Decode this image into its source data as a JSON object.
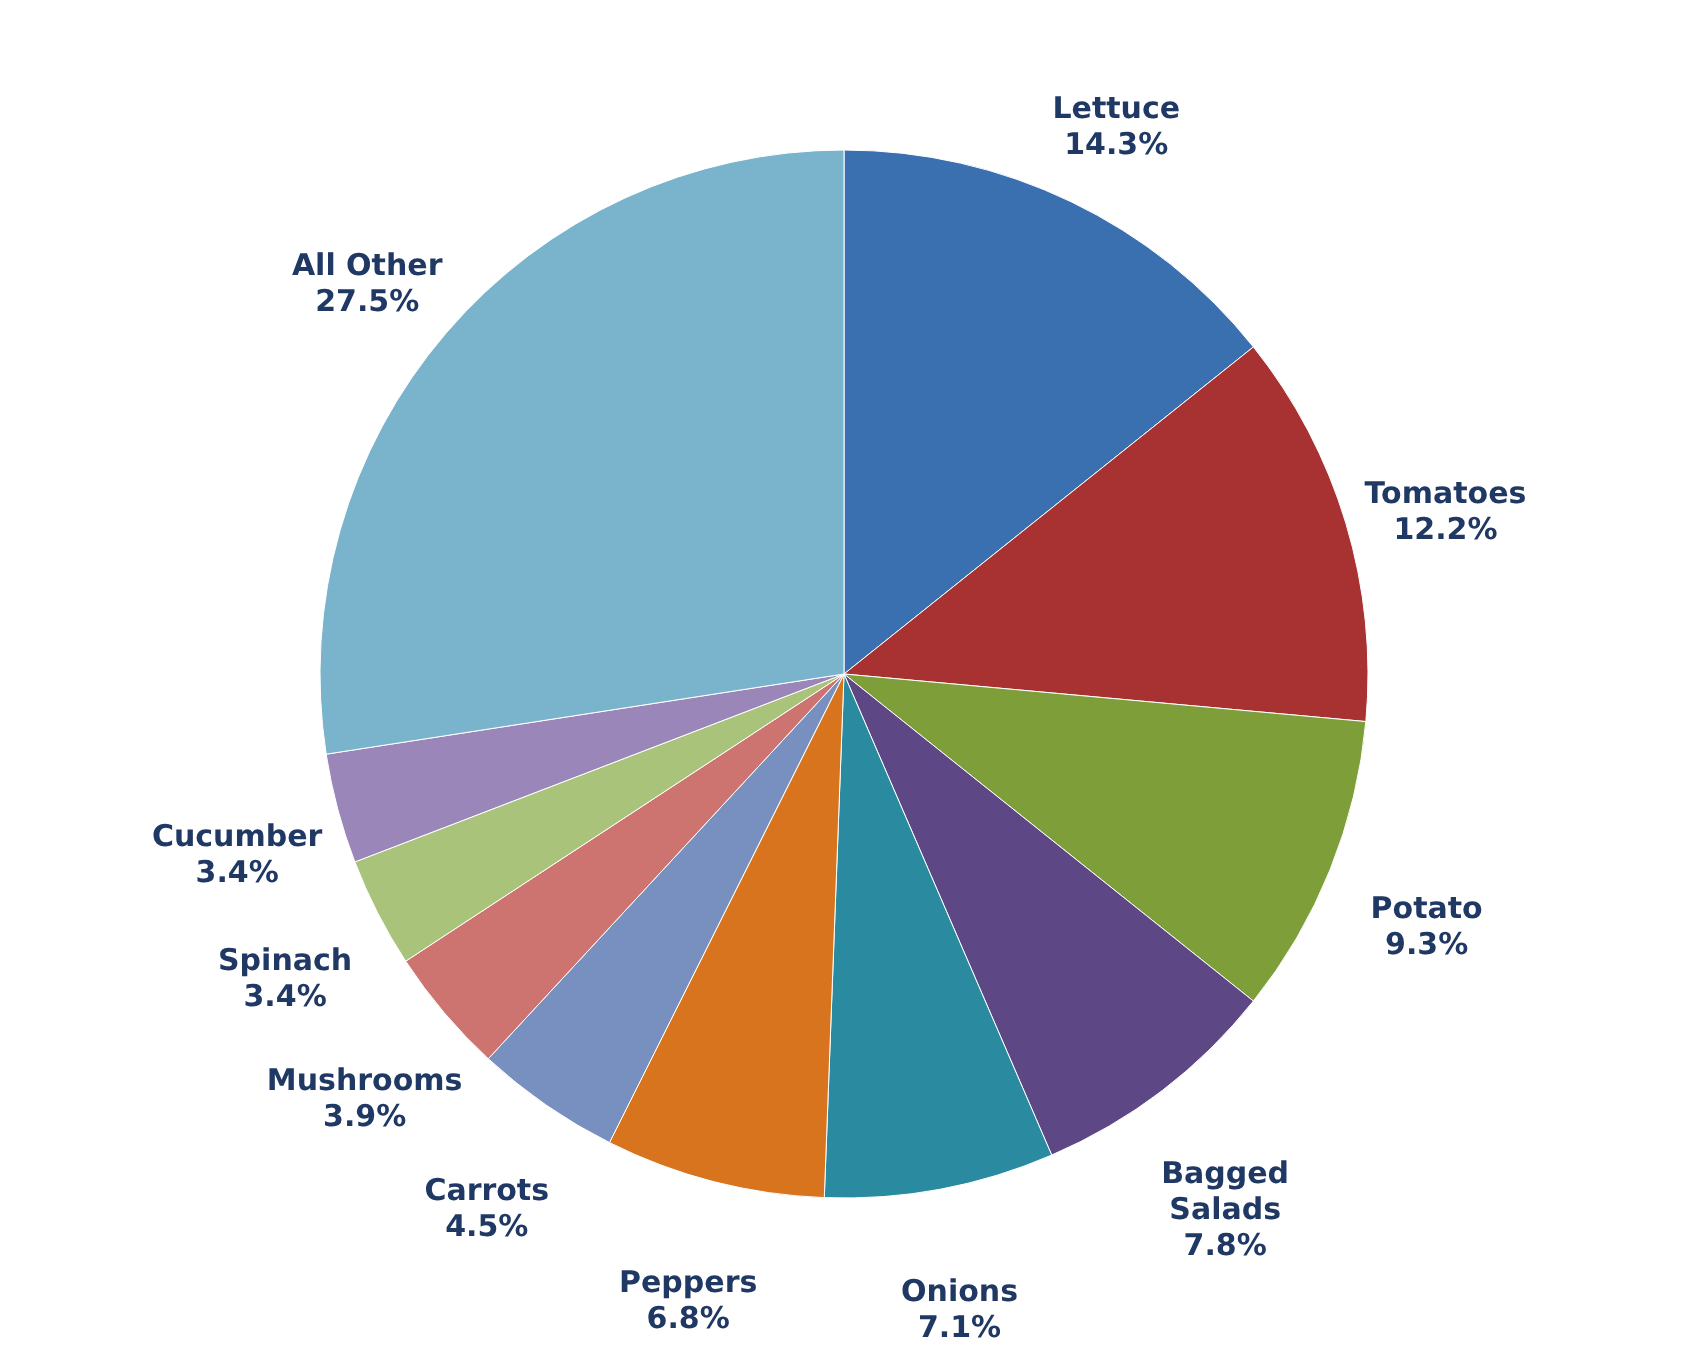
{
  "chart_data": {
    "type": "pie",
    "categories": [
      "Lettuce",
      "Tomatoes",
      "Potato",
      "Bagged Salads",
      "Onions",
      "Peppers",
      "Carrots",
      "Mushrooms",
      "Spinach",
      "Cucumber",
      "All Other"
    ],
    "values": [
      14.3,
      12.2,
      9.3,
      7.8,
      7.1,
      6.8,
      4.5,
      3.9,
      3.4,
      3.4,
      27.5
    ],
    "value_labels": [
      "14.3%",
      "12.2%",
      "9.3%",
      "7.8%",
      "7.1%",
      "6.8%",
      "4.5%",
      "3.9%",
      "3.4%",
      "3.4%",
      "27.5%"
    ],
    "colors": [
      "#3a6fb0",
      "#a83232",
      "#7e9e3a",
      "#5e4785",
      "#2a8aa0",
      "#d8741e",
      "#7790c0",
      "#cd7370",
      "#a9c47a",
      "#9a86b8",
      "#7ab4cc"
    ],
    "legend": false
  }
}
